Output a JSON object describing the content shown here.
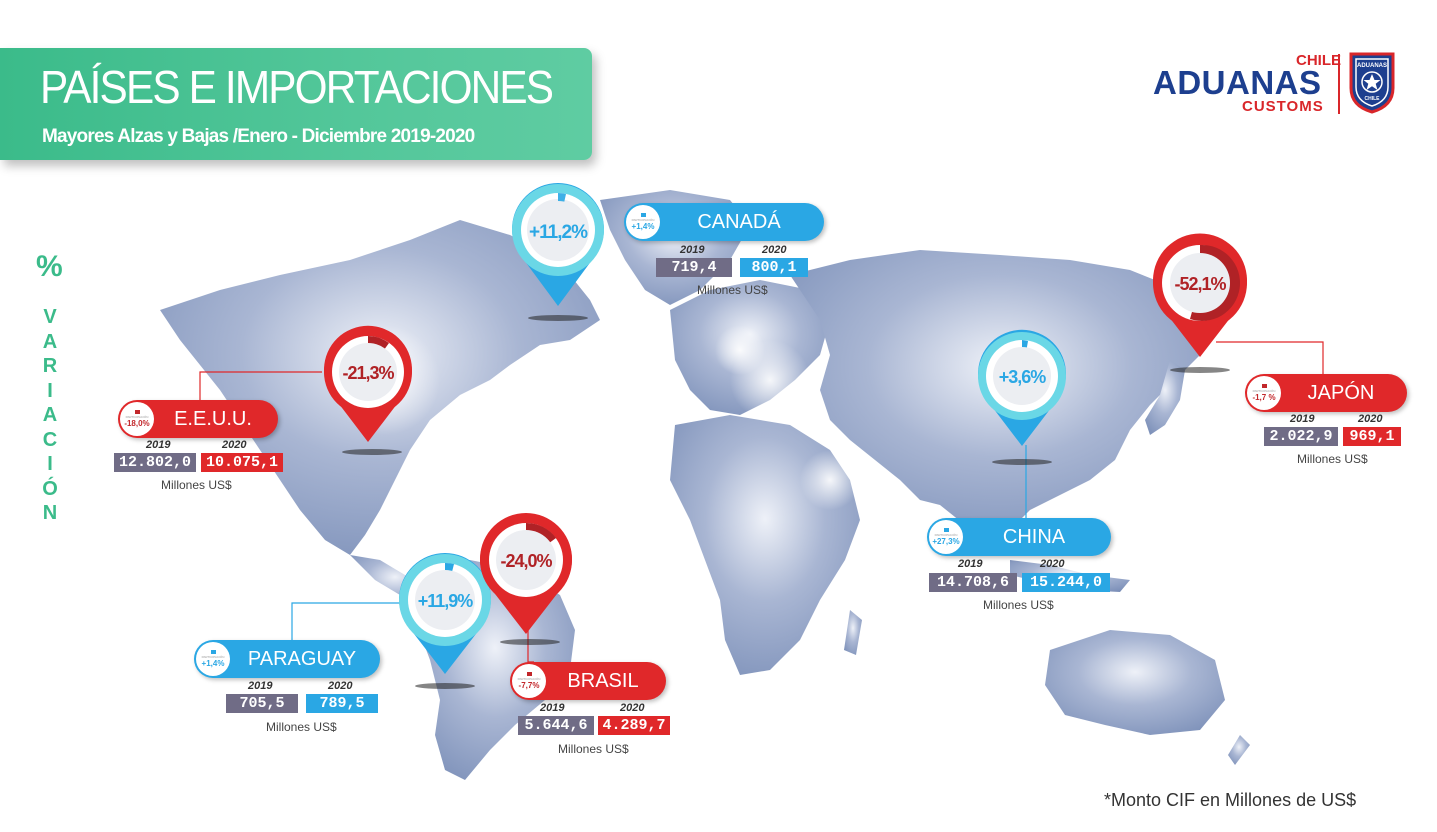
{
  "header": {
    "title": "PAÍSES E IMPORTACIONES",
    "subtitle": "Mayores Alzas y Bajas /Enero - Diciembre 2019-2020"
  },
  "logo": {
    "chile": "CHILE",
    "aduanas": "ADUANAS",
    "customs": "CUSTOMS",
    "shield_top": "ADUANAS",
    "shield_bottom": "CHILE"
  },
  "side_label": {
    "percent": "%",
    "word": "VARIACIÓN"
  },
  "year_labels": {
    "y2019": "2019",
    "y2020": "2020"
  },
  "unit_label": "Millones US$",
  "participation_label": "PARTICIPACIÓN",
  "countries": {
    "canada": {
      "name": "CANADÁ",
      "variation": "+11,2%",
      "participation": "+1,4%",
      "v2019": "719,4",
      "v2020": "800,1",
      "trend": "up"
    },
    "eeuu": {
      "name": "E.E.U.U.",
      "variation": "-21,3%",
      "participation": "-18,0%",
      "v2019": "12.802,0",
      "v2020": "10.075,1",
      "trend": "down"
    },
    "japon": {
      "name": "JAPÓN",
      "variation": "-52,1%",
      "participation": "-1,7 %",
      "v2019": "2.022,9",
      "v2020": "969,1",
      "trend": "down"
    },
    "china": {
      "name": "CHINA",
      "variation": "+3,6%",
      "participation": "+27,3%",
      "v2019": "14.708,6",
      "v2020": "15.244,0",
      "trend": "up"
    },
    "paraguay": {
      "name": "PARAGUAY",
      "variation": "+11,9%",
      "participation": "+1,4%",
      "v2019": "705,5",
      "v2020": "789,5",
      "trend": "up"
    },
    "brasil": {
      "name": "BRASIL",
      "variation": "-24,0%",
      "participation": "-7,7%",
      "v2019": "5.644,6",
      "v2020": "4.289,7",
      "trend": "down"
    }
  },
  "footnote": "*Monto CIF en Millones de US$",
  "colors": {
    "green": "#3bbb8a",
    "blue": "#2aa7e4",
    "red": "#e0282a",
    "gray_box": "#706c86",
    "map": "#8a9cc0",
    "navy": "#1d3f8f"
  }
}
